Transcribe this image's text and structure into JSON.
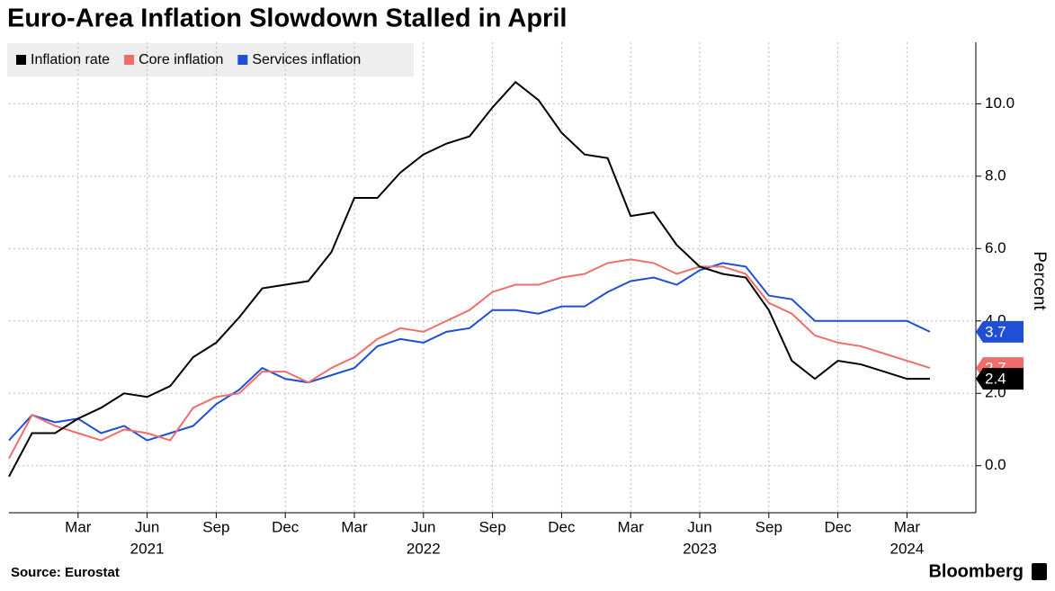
{
  "chart_data": {
    "type": "line",
    "title": "Euro-Area Inflation Slowdown Stalled in April",
    "y_label": "Percent",
    "source": "Source: Eurostat",
    "brand": "Bloomberg",
    "categories": [
      null,
      null,
      null,
      "Mar",
      null,
      null,
      "Jun",
      null,
      null,
      "Sep",
      null,
      null,
      "Dec",
      null,
      null,
      "Mar",
      null,
      null,
      "Jun",
      null,
      null,
      "Sep",
      null,
      null,
      "Dec",
      null,
      null,
      "Mar",
      null,
      null,
      "Jun",
      null,
      null,
      "Sep",
      null,
      null,
      "Dec",
      null,
      null,
      "Mar",
      null
    ],
    "years": [
      null,
      null,
      null,
      null,
      null,
      null,
      "2021",
      null,
      null,
      null,
      null,
      null,
      null,
      null,
      null,
      null,
      null,
      null,
      "2022",
      null,
      null,
      null,
      null,
      null,
      null,
      null,
      null,
      null,
      null,
      null,
      "2023",
      null,
      null,
      null,
      null,
      null,
      null,
      null,
      null,
      "2024",
      null
    ],
    "series": [
      {
        "name": "Inflation rate",
        "color": "#000000",
        "values": [
          -0.3,
          0.9,
          0.9,
          1.3,
          1.6,
          2.0,
          1.9,
          2.2,
          3.0,
          3.4,
          4.1,
          4.9,
          5.0,
          5.1,
          5.9,
          7.4,
          7.4,
          8.1,
          8.6,
          8.9,
          9.1,
          9.9,
          10.6,
          10.1,
          9.2,
          8.6,
          8.5,
          6.9,
          7.0,
          6.1,
          5.5,
          5.3,
          5.2,
          4.3,
          2.9,
          2.4,
          2.9,
          2.8,
          2.6,
          2.4,
          2.4
        ]
      },
      {
        "name": "Core inflation",
        "color": "#ef6e6b",
        "values": [
          0.2,
          1.4,
          1.1,
          0.9,
          0.7,
          1.0,
          0.9,
          0.7,
          1.6,
          1.9,
          2.0,
          2.6,
          2.6,
          2.3,
          2.7,
          3.0,
          3.5,
          3.8,
          3.7,
          4.0,
          4.3,
          4.8,
          5.0,
          5.0,
          5.2,
          5.3,
          5.6,
          5.7,
          5.6,
          5.3,
          5.5,
          5.5,
          5.3,
          4.5,
          4.2,
          3.6,
          3.4,
          3.3,
          3.1,
          2.9,
          2.7
        ]
      },
      {
        "name": "Services inflation",
        "color": "#1f4fd4",
        "values": [
          0.7,
          1.4,
          1.2,
          1.3,
          0.9,
          1.1,
          0.7,
          0.9,
          1.1,
          1.7,
          2.1,
          2.7,
          2.4,
          2.3,
          2.5,
          2.7,
          3.3,
          3.5,
          3.4,
          3.7,
          3.8,
          4.3,
          4.3,
          4.2,
          4.4,
          4.4,
          4.8,
          5.1,
          5.2,
          5.0,
          5.4,
          5.6,
          5.5,
          4.7,
          4.6,
          4.0,
          4.0,
          4.0,
          4.0,
          4.0,
          3.7
        ]
      }
    ],
    "ylim": [
      -1.3,
      11.7
    ],
    "yticks": [
      {
        "value": 0,
        "label": "0.0"
      },
      {
        "value": 2,
        "label": "2.0"
      },
      {
        "value": 4,
        "label": "4.0"
      },
      {
        "value": 6,
        "label": "6.0"
      },
      {
        "value": 8,
        "label": "8.0"
      },
      {
        "value": 10,
        "label": "10.0"
      }
    ],
    "grid": true,
    "legend": "top-left"
  }
}
